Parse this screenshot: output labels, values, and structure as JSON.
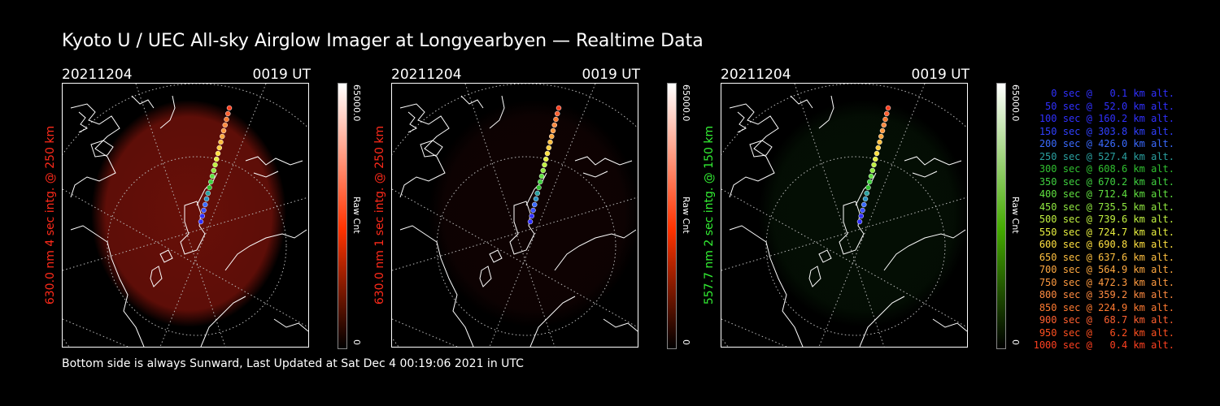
{
  "title": "Kyoto U / UEC All-sky Airglow Imager at Longyearbyen — Realtime Data",
  "footer": "Bottom side is always Sunward, Last Updated at Sat Dec  4 00:19:06 2021 in UTC",
  "panels": [
    {
      "date": "20211204",
      "time": "0019 UT",
      "ylabel": "630.0 nm 4 sec intg. @ 250 km",
      "ylabel_color": "#ff2a1a",
      "glow_color": "#7a120a",
      "glow_level": 0.85,
      "colorbar_max": "65000.0",
      "colorbar_min": "0",
      "colorbar_label": "Raw Cnt",
      "colorbar_top": "#ffffff",
      "colorbar_bottom": "#ff3300"
    },
    {
      "date": "20211204",
      "time": "0019 UT",
      "ylabel": "630.0 nm 1 sec intg. @ 250 km",
      "ylabel_color": "#ff2a1a",
      "glow_color": "#2a0606",
      "glow_level": 0.35,
      "colorbar_max": "65000.0",
      "colorbar_min": "0",
      "colorbar_label": "Raw Cnt",
      "colorbar_top": "#ffffff",
      "colorbar_bottom": "#ff3300"
    },
    {
      "date": "20211204",
      "time": "0019 UT",
      "ylabel": "557.7 nm 2 sec intg. @ 150 km",
      "ylabel_color": "#33ee33",
      "glow_color": "#0b2a0b",
      "glow_level": 0.35,
      "colorbar_max": "65000.0",
      "colorbar_min": "0",
      "colorbar_label": "Raw Cnt",
      "colorbar_top": "#ffffff",
      "colorbar_bottom": "#44aa00"
    }
  ],
  "legend": [
    {
      "text": "0 sec @   0.1 km alt.",
      "color": "#3030ff"
    },
    {
      "text": "50 sec @  52.0 km alt.",
      "color": "#3030ff"
    },
    {
      "text": "100 sec @ 160.2 km alt.",
      "color": "#3030ff"
    },
    {
      "text": "150 sec @ 303.8 km alt.",
      "color": "#3040ff"
    },
    {
      "text": "200 sec @ 426.0 km alt.",
      "color": "#3a6aff"
    },
    {
      "text": "250 sec @ 527.4 km alt.",
      "color": "#2aa0a0"
    },
    {
      "text": "300 sec @ 608.6 km alt.",
      "color": "#30c030"
    },
    {
      "text": "350 sec @ 670.2 km alt.",
      "color": "#40d040"
    },
    {
      "text": "400 sec @ 712.4 km alt.",
      "color": "#60e040"
    },
    {
      "text": "450 sec @ 735.5 km alt.",
      "color": "#90e840"
    },
    {
      "text": "500 sec @ 739.6 km alt.",
      "color": "#c0f040"
    },
    {
      "text": "550 sec @ 724.7 km alt.",
      "color": "#e8f040"
    },
    {
      "text": "600 sec @ 690.8 km alt.",
      "color": "#ffe040"
    },
    {
      "text": "650 sec @ 637.6 km alt.",
      "color": "#ffc040"
    },
    {
      "text": "700 sec @ 564.9 km alt.",
      "color": "#ffa840"
    },
    {
      "text": "750 sec @ 472.3 km alt.",
      "color": "#ff9a40"
    },
    {
      "text": "800 sec @ 359.2 km alt.",
      "color": "#ff8a40"
    },
    {
      "text": "850 sec @ 224.9 km alt.",
      "color": "#ff7a30"
    },
    {
      "text": "900 sec @  68.7 km alt.",
      "color": "#ff6030"
    },
    {
      "text": "950 sec @   6.2 km alt.",
      "color": "#ff5020"
    },
    {
      "text": "1000 sec @   0.4 km alt.",
      "color": "#ff4020"
    }
  ]
}
